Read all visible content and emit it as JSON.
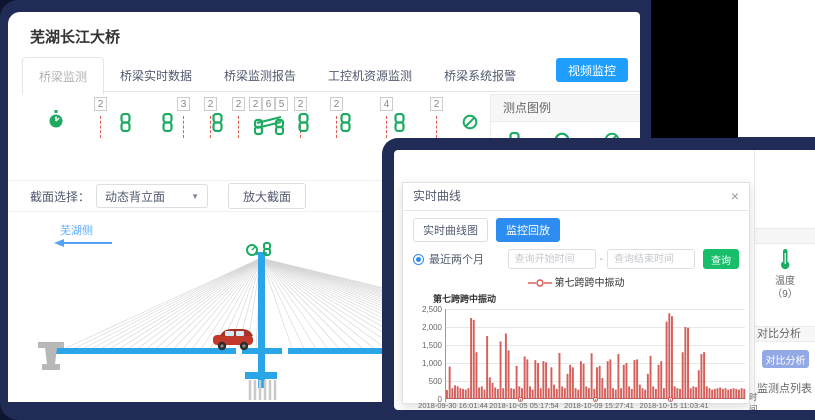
{
  "window": {
    "title": "芜湖长江大桥"
  },
  "tabs": [
    {
      "label": "桥梁监测",
      "active": true
    },
    {
      "label": "桥梁实时数据",
      "active": false
    },
    {
      "label": "桥梁监测报告",
      "active": false
    },
    {
      "label": "工控机资源监测",
      "active": false
    },
    {
      "label": "桥梁系统报警",
      "active": false
    }
  ],
  "video_button": "视频监控",
  "sensor_strip": {
    "items": [
      {
        "type": "clock",
        "x": 40
      },
      {
        "type": "dash",
        "count": "2",
        "x": 86
      },
      {
        "type": "link",
        "x": 112
      },
      {
        "type": "link",
        "x": 154
      },
      {
        "type": "dash",
        "count": "3",
        "x": 169
      },
      {
        "type": "dash",
        "count": "2",
        "x": 196
      },
      {
        "type": "link",
        "x": 204
      },
      {
        "type": "dash",
        "count": "2",
        "x": 224
      },
      {
        "type": "bearing",
        "counts": [
          "2",
          "6",
          "5"
        ],
        "x": 241
      },
      {
        "type": "dash",
        "count": "2",
        "x": 286
      },
      {
        "type": "link",
        "x": 290
      },
      {
        "type": "dash",
        "count": "2",
        "x": 322
      },
      {
        "type": "link",
        "x": 332
      },
      {
        "type": "dash",
        "count": "4",
        "x": 372
      },
      {
        "type": "link",
        "x": 386
      },
      {
        "type": "dash",
        "count": "2",
        "x": 422
      },
      {
        "type": "noentry",
        "x": 454
      }
    ]
  },
  "legend_panel": {
    "title": "测点图例",
    "icons": [
      "link",
      "circle",
      "noentry"
    ]
  },
  "section_toolbar": {
    "label": "截面选择：",
    "select_value": "动态背立面",
    "select_caret": "▼",
    "zoom_button": "放大截面"
  },
  "bridge": {
    "side_label": "芜湖侧"
  },
  "sidebar": {
    "temp_label": "温度",
    "temp_count": "（9）",
    "compare_header": "对比分析",
    "compare_button": "对比分析",
    "points_list": "监测点列表"
  },
  "modal": {
    "title": "实时曲线",
    "close": "×",
    "tabs": [
      {
        "label": "实时曲线图",
        "active": false
      },
      {
        "label": "监控回放",
        "active": true
      }
    ],
    "radio_label": "最近两个月",
    "start_placeholder": "查询开始时间",
    "separator": "-",
    "end_placeholder": "查询结束时间",
    "search_button": "查询",
    "legend_label": "第七跨跨中振动"
  },
  "chart_data": {
    "type": "bar",
    "title": "第七跨跨中振动",
    "series_name": "第七跨跨中振动",
    "color": "#cf4a44",
    "xlabel": "时间",
    "ylabel": "",
    "ylim": [
      0,
      2500
    ],
    "grid": true,
    "legend_position": "top",
    "y_ticks": [
      "0",
      "500",
      "1,000",
      "1,500",
      "2,000",
      "2,500"
    ],
    "x_tick_labels": [
      "2018-09-30 16:01:44",
      "2018-10-05 05:17:54",
      "2018-10-09 15:27:41",
      "2018-10-15 11:03:41"
    ],
    "values": [
      250,
      900,
      300,
      380,
      350,
      300,
      280,
      260,
      300,
      2250,
      2200,
      1300,
      320,
      350,
      260,
      1750,
      600,
      450,
      320,
      280,
      1600,
      300,
      1820,
      1350,
      300,
      280,
      920,
      350,
      300,
      1180,
      1100,
      350,
      260,
      1080,
      1000,
      300,
      1050,
      1020,
      300,
      880,
      400,
      280,
      1280,
      350,
      300,
      700,
      950,
      880,
      300,
      260,
      1050,
      980,
      350,
      300,
      1270,
      280,
      880,
      920,
      580,
      300,
      1050,
      1100,
      300,
      260,
      1250,
      300,
      950,
      1000,
      350,
      280,
      1080,
      1100,
      400,
      300,
      260,
      700,
      1200,
      350,
      280,
      950,
      1050,
      300,
      2150,
      2380,
      2300,
      350,
      300,
      280,
      1300,
      2000,
      1980,
      300,
      350,
      330,
      800,
      1250,
      1300,
      350,
      300,
      260,
      280,
      300,
      320,
      280,
      300,
      260,
      280,
      300,
      280,
      260,
      300,
      280
    ]
  }
}
